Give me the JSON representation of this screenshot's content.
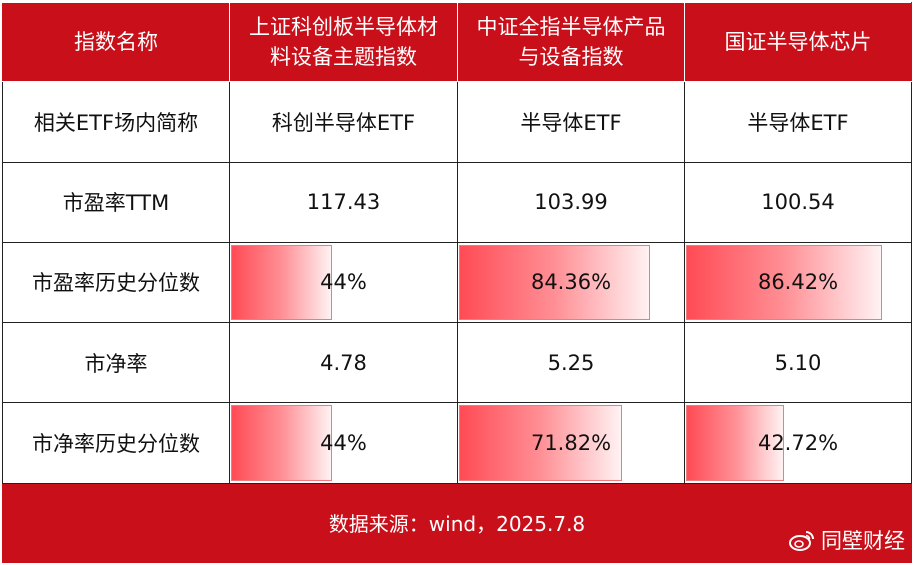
{
  "header": {
    "col0": "指数名称",
    "col1_line1": "上证科创板半导体材",
    "col1_line2": "料设备主题指数",
    "col2_line1": "中证全指半导体产品",
    "col2_line2": "与设备指数",
    "col3": "国证半导体芯片"
  },
  "rows": [
    {
      "label": "相关ETF场内简称",
      "c1": "科创半导体ETF",
      "c2": "半导体ETF",
      "c3": "半导体ETF"
    },
    {
      "label": "市盈率TTM",
      "c1": "117.43",
      "c2": "103.99",
      "c3": "100.54"
    },
    {
      "label": "市盈率历史分位数",
      "c1": "44%",
      "c2": "84.36%",
      "c3": "86.42%",
      "c1_pct": 44,
      "c2_pct": 84.36,
      "c3_pct": 86.42
    },
    {
      "label": "市净率",
      "c1": "4.78",
      "c2": "5.25",
      "c3": "5.10"
    },
    {
      "label": "市净率历史分位数",
      "c1": "44%",
      "c2": "71.82%",
      "c3": "42.72%",
      "c1_pct": 44,
      "c2_pct": 71.82,
      "c3_pct": 42.72
    }
  ],
  "footer": {
    "source": "数据来源：wind，2025.7.8"
  },
  "watermark": {
    "text": "同壁财经",
    "icon": "weibo-icon"
  },
  "colors": {
    "header_bg": "#c80f1a",
    "bar_start": "#ff4b55",
    "bar_end": "#fff2f3"
  }
}
